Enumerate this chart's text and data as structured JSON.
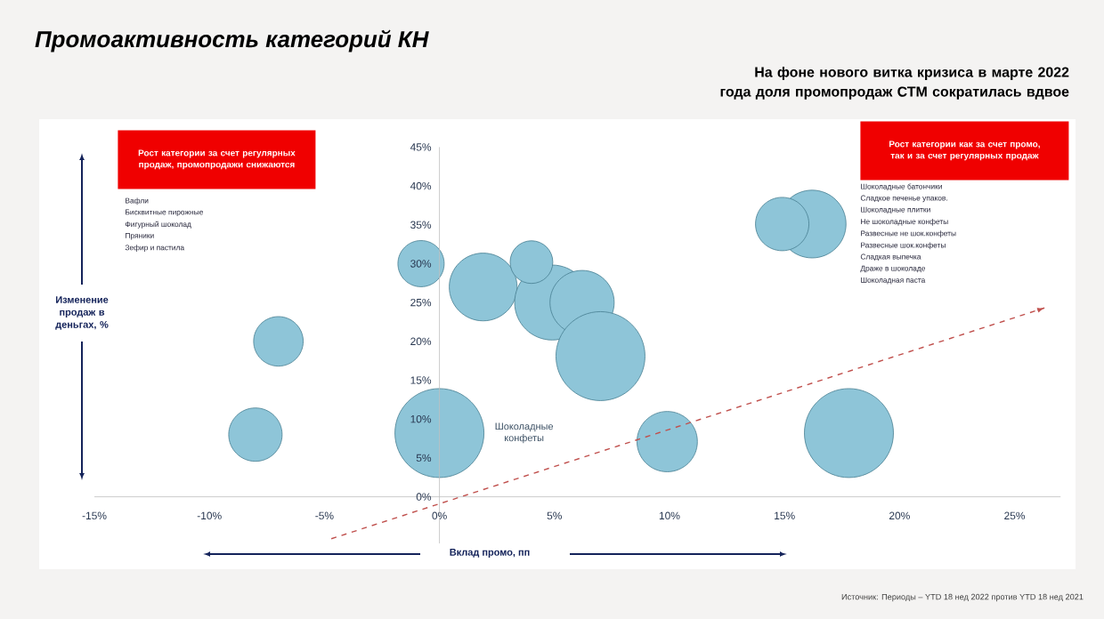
{
  "chart_data": {
    "type": "bubble",
    "title": "Промоактивность категорий КН",
    "subtitle": "На фоне нового витка кризиса в марте 2022 года доля промопродаж СТМ сократилась вдвое",
    "xlabel": "Вклад промо, пп",
    "ylabel": "Изменение продаж в деньгах, %",
    "xlim": [
      -15,
      27
    ],
    "ylim": [
      -6,
      45
    ],
    "xticks": [
      {
        "value": -15,
        "label": "-15%"
      },
      {
        "value": -10,
        "label": "-10%"
      },
      {
        "value": -5,
        "label": "-5%"
      },
      {
        "value": 0,
        "label": "0%"
      },
      {
        "value": 5,
        "label": "5%"
      },
      {
        "value": 10,
        "label": "10%"
      },
      {
        "value": 15,
        "label": "15%"
      },
      {
        "value": 20,
        "label": "20%"
      },
      {
        "value": 25,
        "label": "25%"
      }
    ],
    "yticks": [
      {
        "value": 0,
        "label": "0%"
      },
      {
        "value": 5,
        "label": "5%"
      },
      {
        "value": 10,
        "label": "10%"
      },
      {
        "value": 15,
        "label": "15%"
      },
      {
        "value": 20,
        "label": "20%"
      },
      {
        "value": 25,
        "label": "25%"
      },
      {
        "value": 30,
        "label": "30%"
      },
      {
        "value": 35,
        "label": "35%"
      },
      {
        "value": 40,
        "label": "40%"
      },
      {
        "value": 45,
        "label": "45%"
      }
    ],
    "series": [
      {
        "type": "bubble",
        "color": "#8ec5d8",
        "x": [
          -0.8,
          1.9,
          4.9,
          6.2,
          4.0,
          7.0,
          0.0,
          9.9,
          17.8,
          16.2,
          14.9,
          -7.0,
          -8.0
        ],
        "values": [
          30.0,
          27.0,
          25.0,
          25.0,
          30.2,
          18.1,
          8.2,
          7.1,
          8.2,
          35.1,
          35.1,
          20.0,
          8.0
        ],
        "sizes": [
          0.27,
          0.58,
          0.71,
          0.52,
          0.23,
          1,
          1,
          0.46,
          1,
          0.58,
          0.36,
          0.31,
          0.36
        ]
      },
      {
        "type": "line",
        "color": "#c0504d",
        "line_style": "dashed",
        "x": [
          -4.7,
          26.3
        ],
        "values": [
          -5.4,
          24.3
        ]
      }
    ],
    "annotations": [
      "Рост категории за счет регулярных продаж, промопродажи снижаются",
      "Вафли",
      "Бисквитные пирожные",
      "Фигурный шоколад",
      "Пряники",
      "Зефир и пастила",
      "Рост категории как за счет промо, так и за счет регулярных продаж",
      "Шоколадные батончики",
      "Сладкое печенье упаков.",
      "Шоколадные плитки",
      "Не шоколадные конфеты",
      "Развесные не шок.конфеты",
      "Развесные шок.конфеты",
      "Сладкая выпечка",
      "Драже в шоколаде",
      "Шоколадная паста",
      "Шоколадные конфеты",
      "Источник: Периоды – YTD 18 нед 2022 против YTD 18 нед 2021"
    ]
  }
}
